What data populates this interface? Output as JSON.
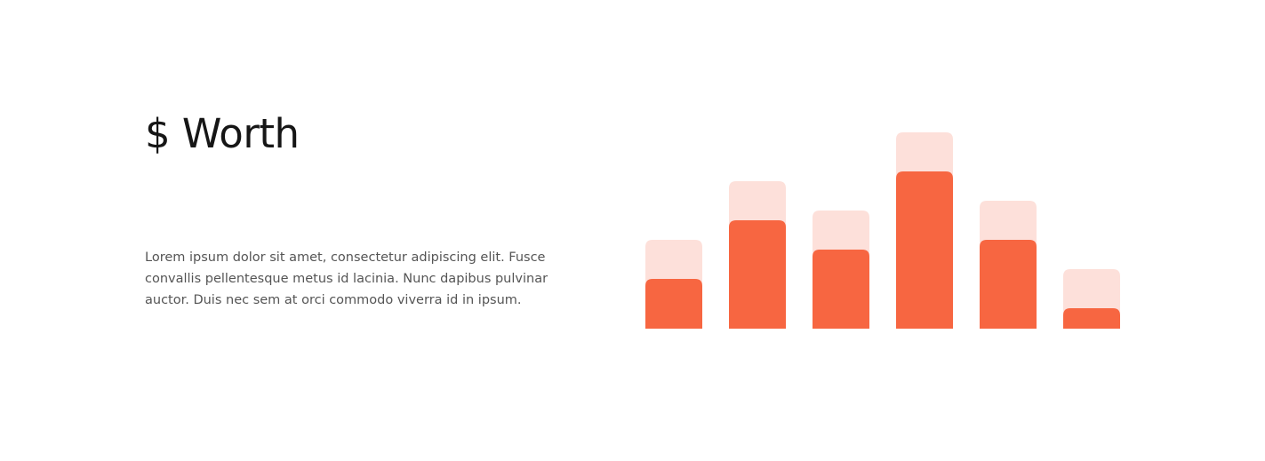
{
  "header": {
    "title": "$ Worth"
  },
  "body": {
    "lines": [
      "Lorem ipsum dolor sit amet, consectetur adipiscing elit. Fusce",
      "convallis pellentesque metus id lacinia. Nunc dapibus pulvinar",
      "auctor. Duis nec sem at orci commodo viverra id in ipsum."
    ]
  },
  "chart_data": {
    "type": "bar",
    "stacked": true,
    "series": [
      {
        "color": "#f76641",
        "values": [
          56,
          122,
          89,
          177,
          100,
          23
        ]
      },
      {
        "color": "#fde0da",
        "values": [
          44,
          44,
          44,
          44,
          44,
          44
        ]
      }
    ]
  }
}
